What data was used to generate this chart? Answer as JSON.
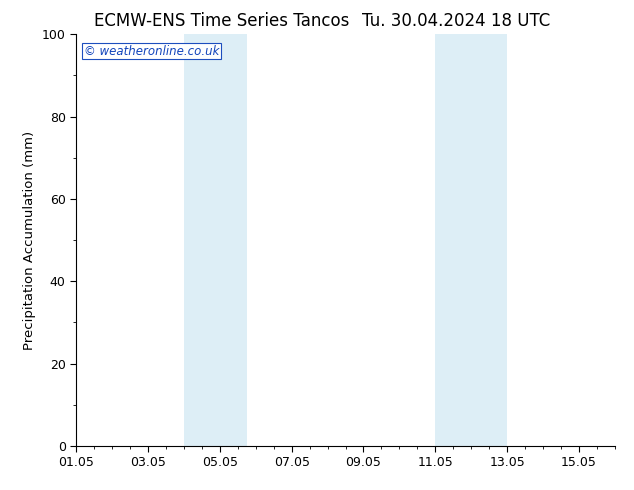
{
  "title_left": "ECMW-ENS Time Series Tancos",
  "title_right": "Tu. 30.04.2024 18 UTC",
  "ylabel": "Precipitation Accumulation (mm)",
  "ylim": [
    0,
    100
  ],
  "yticks": [
    0,
    20,
    40,
    60,
    80,
    100
  ],
  "xlim_start": 1.0,
  "xlim_end": 16.0,
  "xtick_labels": [
    "01.05",
    "03.05",
    "05.05",
    "07.05",
    "09.05",
    "11.05",
    "13.05",
    "15.05"
  ],
  "xtick_days": [
    1,
    3,
    5,
    7,
    9,
    11,
    13,
    15
  ],
  "shaded_regions": [
    {
      "x_start_day": 4.0,
      "x_end_day": 5.75
    },
    {
      "x_start_day": 11.0,
      "x_end_day": 13.0
    }
  ],
  "shade_color": "#ddeef6",
  "watermark": "© weatheronline.co.uk",
  "watermark_color": "#1144bb",
  "bg_color": "#ffffff",
  "spine_color": "#000000",
  "tick_color": "#000000",
  "title_fontsize": 12,
  "label_fontsize": 9.5,
  "tick_fontsize": 9
}
